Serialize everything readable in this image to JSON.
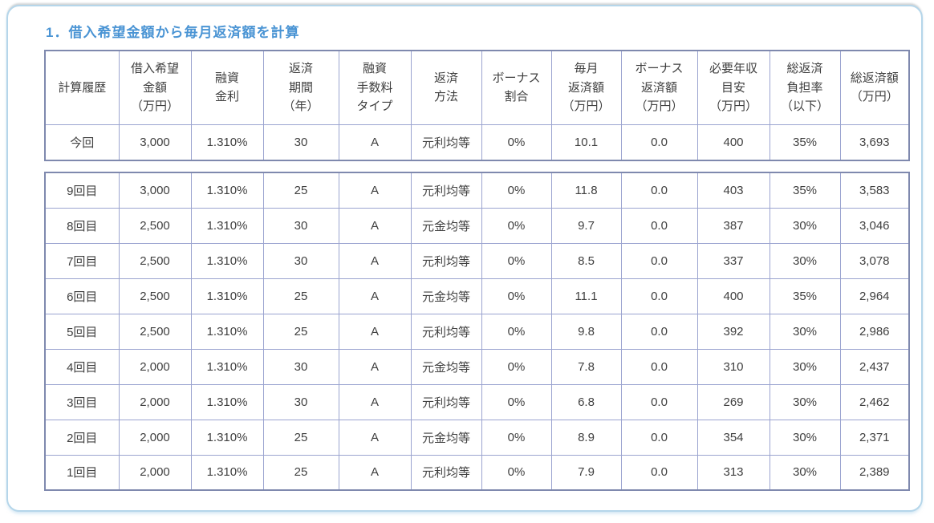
{
  "colors": {
    "title_blue": "#4a94d4",
    "frame_border": "#b5d6ea",
    "table_outer_border": "#7f89ae",
    "table_inner_border": "#9ba4d0",
    "dashed_divider": "#8b8f9b",
    "cell_text": "#3f3f3f"
  },
  "page": {
    "title": "1．借入希望金額から毎月返済額を計算"
  },
  "table": {
    "headers": [
      "計算履歴",
      "借入希望\n金額\n（万円）",
      "融資\n金利",
      "返済\n期間\n（年）",
      "融資\n手数料\nタイプ",
      "返済\n方法",
      "ボーナス\n割合",
      "毎月\n返済額\n（万円）",
      "ボーナス\n返済額\n（万円）",
      "必要年収\n目安\n（万円）",
      "総返済\n負担率\n（以下）",
      "総返済額\n（万円）"
    ]
  },
  "current": {
    "label": "今回",
    "values": [
      "3,000",
      "1.310%",
      "30",
      "A",
      "元利均等",
      "0%",
      "10.1",
      "0.0",
      "400",
      "35%",
      "3,693"
    ]
  },
  "history": {
    "rows": [
      {
        "label": "9回目",
        "values": [
          "3,000",
          "1.310%",
          "25",
          "A",
          "元利均等",
          "0%",
          "11.8",
          "0.0",
          "403",
          "35%",
          "3,583"
        ]
      },
      {
        "label": "8回目",
        "values": [
          "2,500",
          "1.310%",
          "30",
          "A",
          "元金均等",
          "0%",
          "9.7",
          "0.0",
          "387",
          "30%",
          "3,046"
        ]
      },
      {
        "label": "7回目",
        "values": [
          "2,500",
          "1.310%",
          "30",
          "A",
          "元利均等",
          "0%",
          "8.5",
          "0.0",
          "337",
          "30%",
          "3,078"
        ]
      },
      {
        "label": "6回目",
        "values": [
          "2,500",
          "1.310%",
          "25",
          "A",
          "元金均等",
          "0%",
          "11.1",
          "0.0",
          "400",
          "35%",
          "2,964"
        ]
      },
      {
        "label": "5回目",
        "values": [
          "2,500",
          "1.310%",
          "25",
          "A",
          "元利均等",
          "0%",
          "9.8",
          "0.0",
          "392",
          "30%",
          "2,986"
        ]
      },
      {
        "label": "4回目",
        "values": [
          "2,000",
          "1.310%",
          "30",
          "A",
          "元金均等",
          "0%",
          "7.8",
          "0.0",
          "310",
          "30%",
          "2,437"
        ]
      },
      {
        "label": "3回目",
        "values": [
          "2,000",
          "1.310%",
          "30",
          "A",
          "元利均等",
          "0%",
          "6.8",
          "0.0",
          "269",
          "30%",
          "2,462"
        ]
      },
      {
        "label": "2回目",
        "values": [
          "2,000",
          "1.310%",
          "25",
          "A",
          "元金均等",
          "0%",
          "8.9",
          "0.0",
          "354",
          "30%",
          "2,371"
        ]
      },
      {
        "label": "1回目",
        "values": [
          "2,000",
          "1.310%",
          "25",
          "A",
          "元利均等",
          "0%",
          "7.9",
          "0.0",
          "313",
          "30%",
          "2,389"
        ]
      }
    ]
  }
}
